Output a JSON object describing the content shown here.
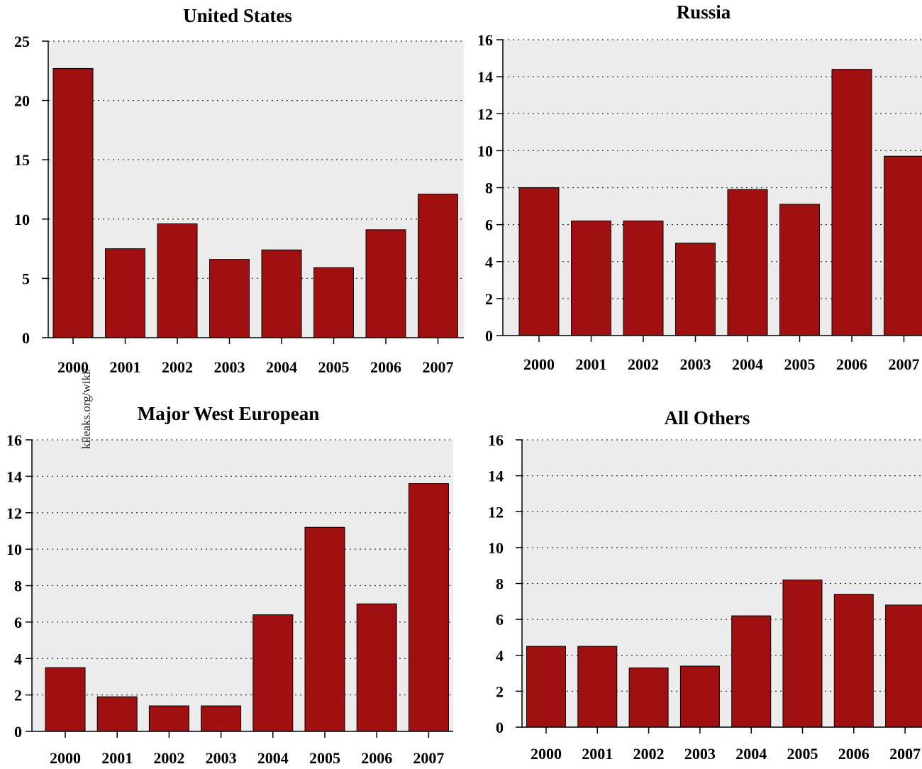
{
  "watermark": "kileaks.org/wiki/",
  "colors": {
    "bar": "#a01010",
    "panel": "#ececec",
    "grid": "#333333"
  },
  "chart_data": [
    {
      "type": "bar",
      "title": "United States",
      "categories": [
        "2000",
        "2001",
        "2002",
        "2003",
        "2004",
        "2005",
        "2006",
        "2007"
      ],
      "values": [
        22.7,
        7.5,
        9.6,
        6.6,
        7.4,
        5.9,
        9.1,
        12.1
      ],
      "ylim": [
        0,
        25
      ],
      "yticks": [
        0,
        5,
        10,
        15,
        20,
        25
      ],
      "grid": true
    },
    {
      "type": "bar",
      "title": "Russia",
      "categories": [
        "2000",
        "2001",
        "2002",
        "2003",
        "2004",
        "2005",
        "2006",
        "2007"
      ],
      "values": [
        8.0,
        6.2,
        6.2,
        5.0,
        7.9,
        7.1,
        14.4,
        9.7
      ],
      "ylim": [
        0,
        16
      ],
      "yticks": [
        0,
        2,
        4,
        6,
        8,
        10,
        12,
        14,
        16
      ],
      "grid": true
    },
    {
      "type": "bar",
      "title": "Major West European",
      "categories": [
        "2000",
        "2001",
        "2002",
        "2003",
        "2004",
        "2005",
        "2006",
        "2007"
      ],
      "values": [
        3.5,
        1.9,
        1.4,
        1.4,
        6.4,
        11.2,
        7.0,
        13.6
      ],
      "ylim": [
        0,
        16
      ],
      "yticks": [
        0,
        2,
        4,
        6,
        8,
        10,
        12,
        14,
        16
      ],
      "grid": true
    },
    {
      "type": "bar",
      "title": "All Others",
      "categories": [
        "2000",
        "2001",
        "2002",
        "2003",
        "2004",
        "2005",
        "2006",
        "2007"
      ],
      "values": [
        4.5,
        4.5,
        3.3,
        3.4,
        6.2,
        8.2,
        7.4,
        6.8
      ],
      "ylim": [
        0,
        16
      ],
      "yticks": [
        0,
        2,
        4,
        6,
        8,
        10,
        12,
        14,
        16
      ],
      "grid": true
    }
  ]
}
